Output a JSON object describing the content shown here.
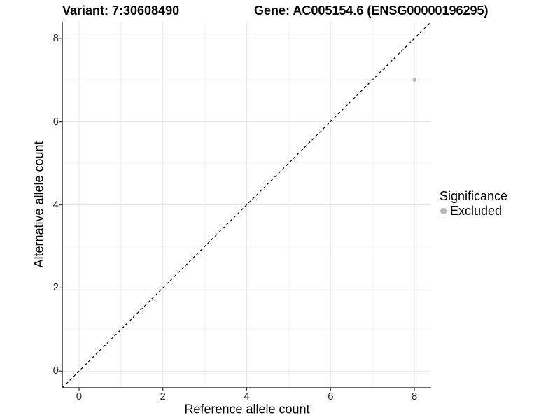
{
  "chart_data": {
    "type": "scatter",
    "titles": {
      "variant": "Variant: 7:30608490",
      "gene": "Gene: AC005154.6 (ENSG00000196295)"
    },
    "xlabel": "Reference allele count",
    "ylabel": "Alternative allele count",
    "xlim": [
      -0.4,
      8.4
    ],
    "ylim": [
      -0.4,
      8.4
    ],
    "x_ticks": [
      0,
      2,
      4,
      6,
      8
    ],
    "y_ticks": [
      0,
      2,
      4,
      6,
      8
    ],
    "x_minor_ticks": [
      1,
      3,
      5,
      7
    ],
    "y_minor_ticks": [
      1,
      3,
      5,
      7
    ],
    "grid": true,
    "points": [
      {
        "x": 8,
        "y": 7,
        "significance": "Excluded"
      }
    ],
    "identity_line": {
      "slope": 1,
      "intercept": 0,
      "style": "dashed"
    },
    "legend": {
      "title": "Significance",
      "position": "right",
      "items": [
        {
          "label": "Excluded",
          "marker": "circle",
          "color": "#b4b4b4"
        }
      ]
    },
    "colors": {
      "point": "#b4b4b4",
      "axis_line": "#333333",
      "tick_mark": "#333333",
      "tick_label": "#333333",
      "grid_major": "#e6e6e6",
      "grid_minor": "#f2f2f2",
      "identity_line": "#000000",
      "background": "#ffffff",
      "title_text": "#000000"
    }
  }
}
